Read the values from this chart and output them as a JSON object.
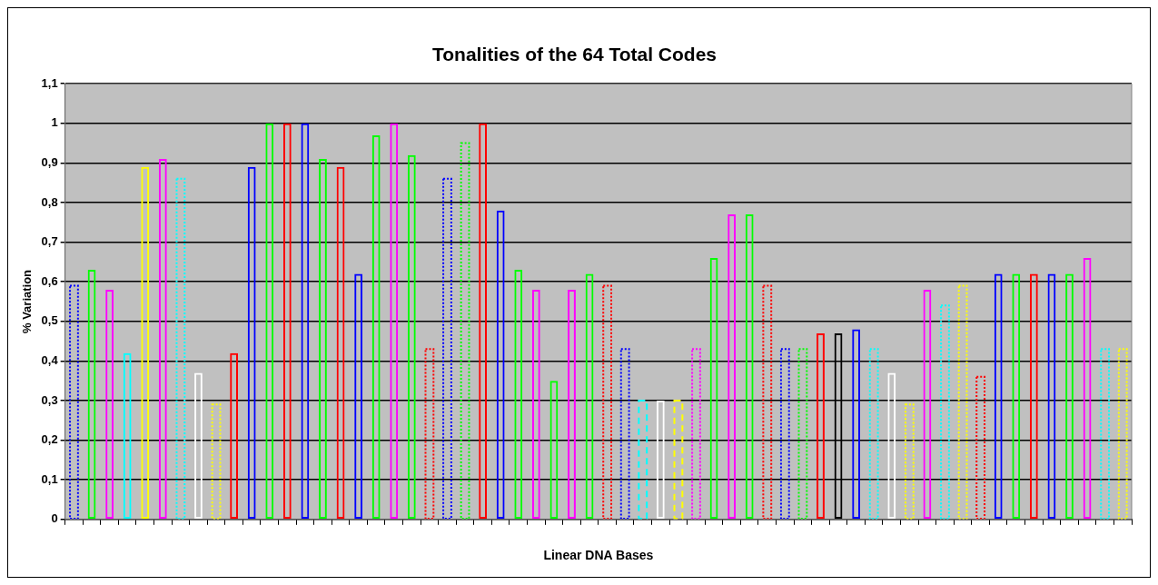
{
  "chart_data": {
    "type": "bar",
    "title": "Tonalities of the 64 Total Codes",
    "xlabel": "Linear DNA Bases",
    "ylabel": "% Variation",
    "categories": [
      null,
      null,
      null,
      null,
      null,
      null,
      null,
      null,
      null,
      null,
      null,
      null,
      null,
      null,
      null,
      null,
      null,
      null,
      null,
      null,
      null,
      null,
      null,
      null,
      null,
      null,
      null,
      null,
      null,
      null,
      null,
      null,
      null,
      null,
      null,
      null,
      null,
      null,
      null,
      null,
      null,
      null,
      null,
      null,
      null,
      null,
      null,
      null,
      null,
      null,
      null,
      null,
      null,
      null,
      null,
      null,
      null,
      null,
      null,
      null
    ],
    "series": [
      {
        "line_style": "solid",
        "values": [
          null,
          0.63,
          0.58,
          0.42,
          0.89,
          0.91,
          null,
          0.37,
          null,
          0.42,
          0.89,
          1,
          1,
          1,
          0.91,
          0.89,
          0.62,
          0.97,
          1,
          0.92,
          null,
          null,
          null,
          1,
          0.78,
          0.63,
          0.58,
          0.35,
          0.58,
          0.62,
          null,
          null,
          null,
          0.3,
          null,
          null,
          0.66,
          0.77,
          0.77,
          null,
          null,
          null,
          0.47,
          0.47,
          0.48,
          null,
          0.37,
          null,
          0.58,
          null,
          null,
          null,
          0.62,
          0.62,
          0.62,
          0.62,
          0.62,
          0.66,
          null,
          null
        ],
        "colors": [
          null,
          "#00ff00",
          "#ff00ff",
          "#00ffff",
          "#ffff00",
          "#ff00ff",
          null,
          "#ffffff",
          null,
          "#ff0000",
          "#0000ff",
          "#00ff00",
          "#ff0000",
          "#0000ff",
          "#00ff00",
          "#ff0000",
          "#0000ff",
          "#00ff00",
          "#ff00ff",
          "#00ff00",
          null,
          null,
          null,
          "#ff0000",
          "#0000ff",
          "#00ff00",
          "#ff00ff",
          "#00ff00",
          "#ff00ff",
          "#00ff00",
          null,
          null,
          null,
          "#ffffff",
          null,
          null,
          "#00ff00",
          "#ff00ff",
          "#00ff00",
          null,
          null,
          null,
          "#ff0000",
          "#000000",
          "#0000ff",
          null,
          "#ffffff",
          null,
          "#ff00ff",
          null,
          null,
          null,
          "#0000ff",
          "#00ff00",
          "#ff0000",
          "#0000ff",
          "#00ff00",
          "#ff00ff",
          null,
          null
        ]
      },
      {
        "line_style": "dotted",
        "values": [
          0.59,
          null,
          null,
          null,
          null,
          null,
          0.86,
          null,
          0.29,
          null,
          null,
          null,
          null,
          null,
          null,
          null,
          null,
          null,
          null,
          null,
          0.43,
          0.86,
          0.95,
          null,
          null,
          null,
          null,
          null,
          null,
          null,
          0.59,
          0.43,
          null,
          null,
          null,
          0.43,
          null,
          null,
          null,
          0.59,
          0.43,
          0.43,
          null,
          null,
          null,
          0.43,
          null,
          0.29,
          null,
          0.54,
          0.59,
          0.36,
          null,
          null,
          null,
          null,
          null,
          null,
          0.43,
          0.43
        ],
        "colors": [
          "#0000ff",
          null,
          null,
          null,
          null,
          null,
          "#00ffff",
          null,
          "#ffff00",
          null,
          null,
          null,
          null,
          null,
          null,
          null,
          null,
          null,
          null,
          null,
          "#ff0000",
          "#0000ff",
          "#00ff00",
          null,
          null,
          null,
          null,
          null,
          null,
          null,
          "#ff0000",
          "#0000ff",
          null,
          null,
          null,
          "#ff00ff",
          null,
          null,
          null,
          "#ff0000",
          "#0000ff",
          "#00ff00",
          null,
          null,
          null,
          "#00ffff",
          null,
          "#ffff00",
          null,
          "#00ffff",
          "#ffff00",
          "#ff0000",
          null,
          null,
          null,
          null,
          null,
          null,
          "#00ffff",
          "#ffff00"
        ]
      },
      {
        "line_style": "dashed",
        "values": [
          null,
          null,
          null,
          null,
          null,
          null,
          null,
          null,
          null,
          null,
          null,
          null,
          null,
          null,
          null,
          null,
          null,
          null,
          null,
          null,
          null,
          null,
          null,
          null,
          null,
          null,
          null,
          null,
          null,
          null,
          null,
          null,
          0.3,
          null,
          0.3,
          null,
          null,
          null,
          null,
          null,
          null,
          null,
          null,
          null,
          null,
          null,
          null,
          null,
          null,
          null,
          null,
          null,
          null,
          null,
          null,
          null,
          null,
          null,
          null,
          null
        ],
        "colors": [
          null,
          null,
          null,
          null,
          null,
          null,
          null,
          null,
          null,
          null,
          null,
          null,
          null,
          null,
          null,
          null,
          null,
          null,
          null,
          null,
          null,
          null,
          null,
          null,
          null,
          null,
          null,
          null,
          null,
          null,
          null,
          null,
          "#00ffff",
          null,
          "#ffff00",
          null,
          null,
          null,
          null,
          null,
          null,
          null,
          null,
          null,
          null,
          null,
          null,
          null,
          null,
          null,
          null,
          null,
          null,
          null,
          null,
          null,
          null,
          null,
          null,
          null
        ]
      }
    ],
    "ylim": [
      0,
      1.1
    ],
    "yticks": [
      0,
      {
        "value": 0.1,
        "label": "0,1"
      },
      {
        "value": 0.2,
        "label": "0,2"
      },
      {
        "value": 0.3,
        "label": "0,3"
      },
      {
        "value": 0.4,
        "label": "0,4"
      },
      {
        "value": 0.5,
        "label": "0,5"
      },
      {
        "value": 0.6,
        "label": "0,6"
      },
      {
        "value": 0.7,
        "label": "0,7"
      },
      {
        "value": 0.8,
        "label": "0,8"
      },
      {
        "value": 0.9,
        "label": "0,9"
      },
      1,
      {
        "value": 1.1,
        "label": "1,1"
      }
    ],
    "grid": "y",
    "legend": false
  }
}
